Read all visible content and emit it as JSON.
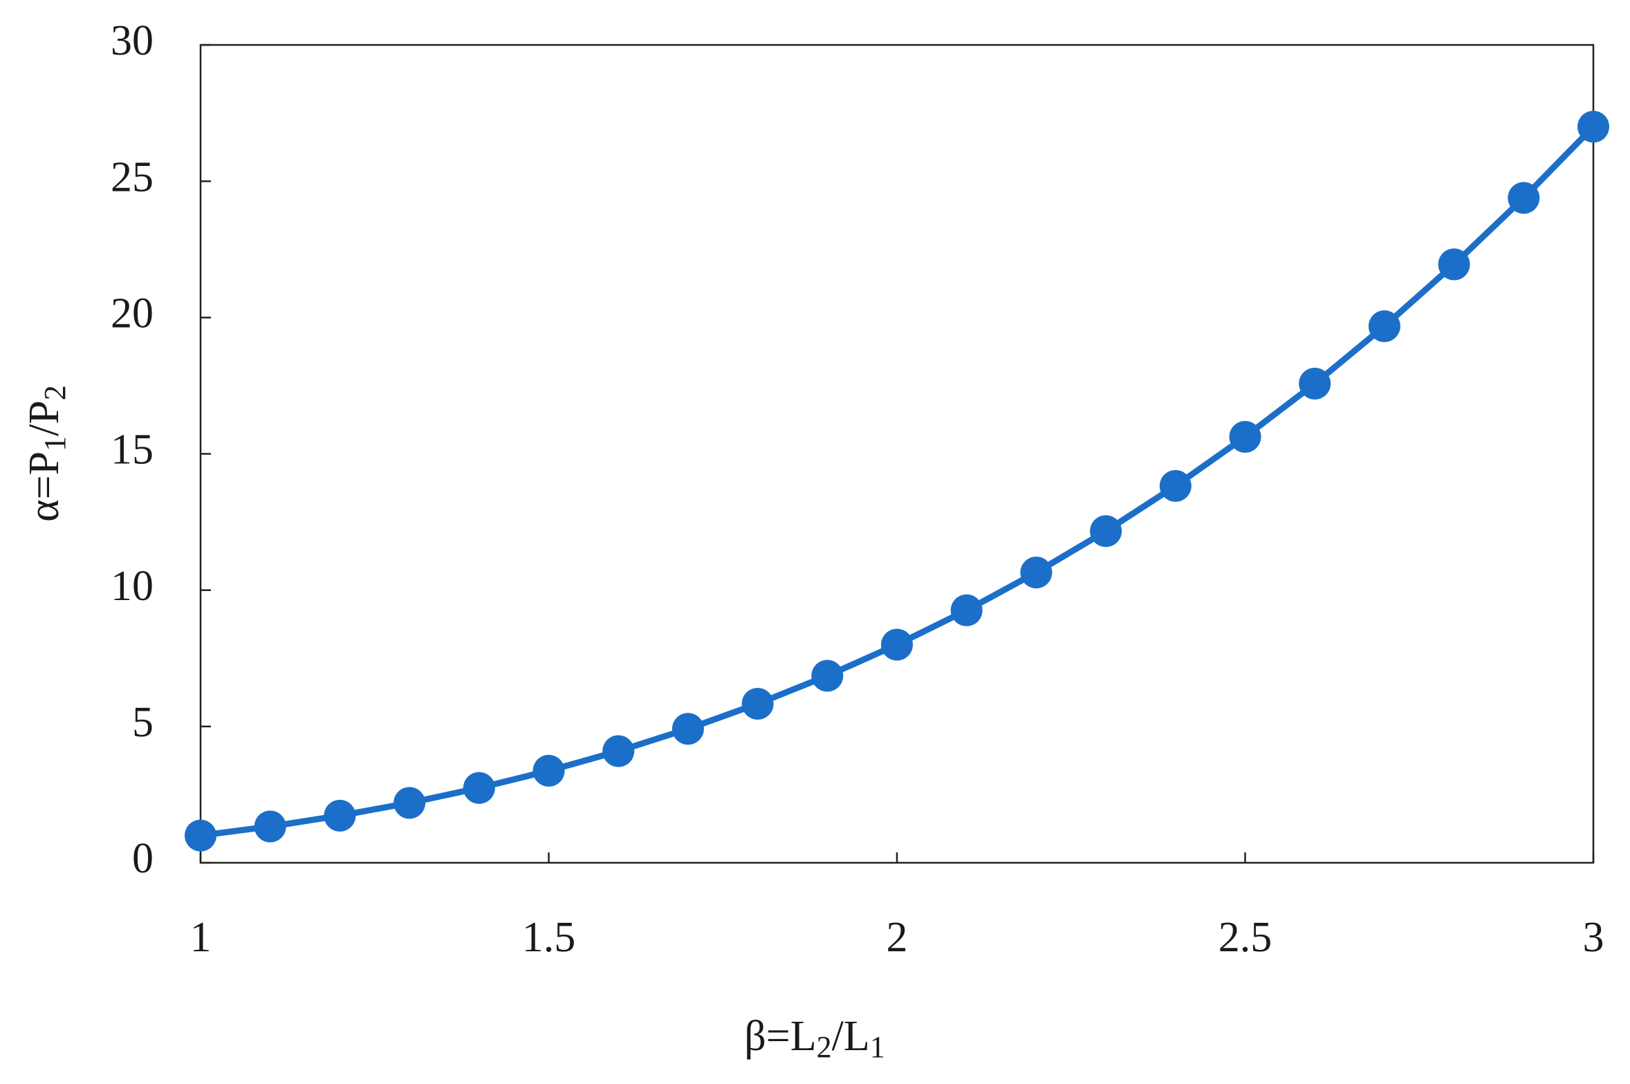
{
  "chart_data": {
    "type": "line",
    "xlabel": [
      "β=L",
      "2",
      "/L",
      "1"
    ],
    "ylabel": [
      "α=P",
      "1",
      "/P",
      "2"
    ],
    "x": [
      1,
      1.1,
      1.2,
      1.3,
      1.4,
      1.5,
      1.6,
      1.7,
      1.8,
      1.9,
      2,
      2.1,
      2.2,
      2.3,
      2.4,
      2.5,
      2.6,
      2.7,
      2.8,
      2.9,
      3
    ],
    "series": [
      {
        "color": "#1c6fc8",
        "values": [
          1,
          1.331,
          1.728,
          2.197,
          2.744,
          3.375,
          4.096,
          4.913,
          5.832,
          6.859,
          8,
          9.261,
          10.648,
          12.167,
          13.824,
          15.625,
          17.576,
          19.683,
          21.952,
          24.389,
          27
        ]
      }
    ],
    "xlim": [
      1,
      3
    ],
    "xticks": [
      1,
      1.5,
      2,
      2.5,
      3
    ],
    "ylim": [
      0,
      30
    ],
    "yticks": [
      0,
      5,
      10,
      15,
      20,
      25,
      30
    ],
    "grid": false
  }
}
